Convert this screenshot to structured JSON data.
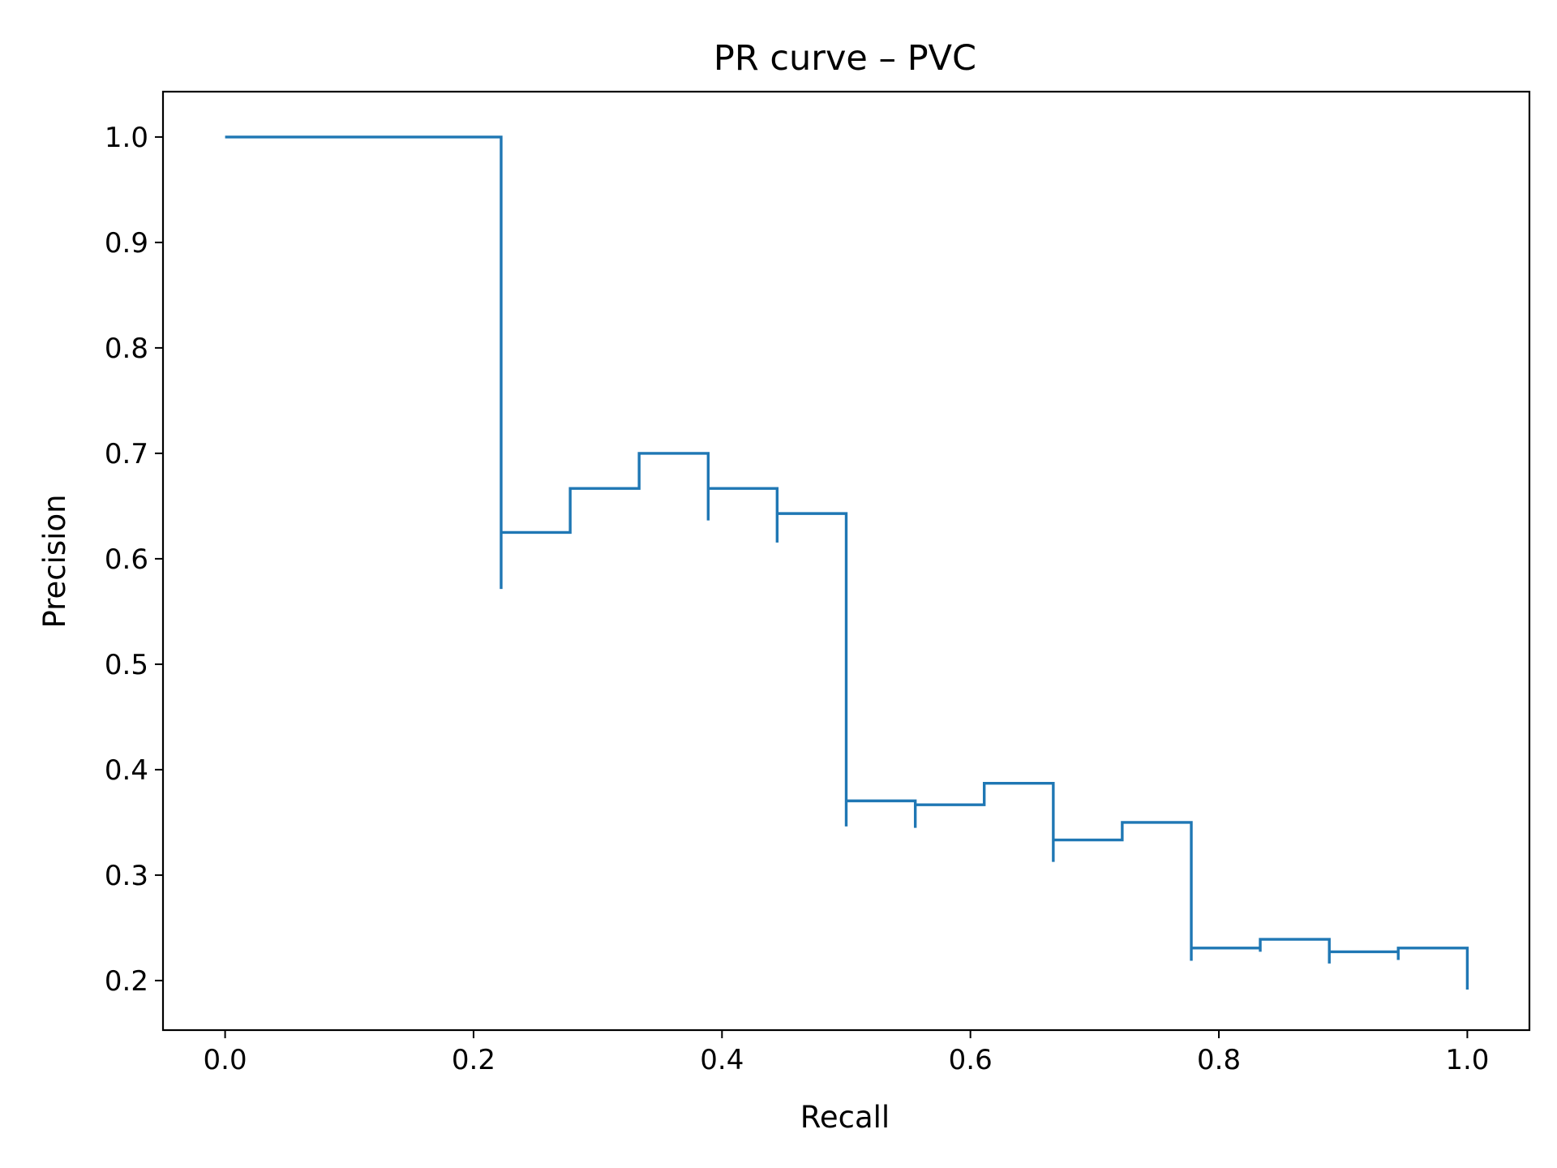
{
  "colors": {
    "series": "#1f77b4",
    "axes": "#000000",
    "background": "#ffffff"
  },
  "chart_data": {
    "type": "line",
    "drawstyle": "steps-post",
    "title": "PR curve – PVC",
    "xlabel": "Recall",
    "ylabel": "Precision",
    "xlim": [
      -0.05,
      1.05
    ],
    "ylim": [
      0.153,
      1.043
    ],
    "xticks": [
      "0.0",
      "0.2",
      "0.4",
      "0.6",
      "0.8",
      "1.0"
    ],
    "yticks": [
      "0.2",
      "0.3",
      "0.4",
      "0.5",
      "0.6",
      "0.7",
      "0.8",
      "0.9",
      "1.0"
    ],
    "grid": false,
    "legend": "none",
    "series": [
      {
        "x": [
          0.0,
          0.2222,
          0.2222,
          0.2778,
          0.3333,
          0.3889,
          0.3889,
          0.4444,
          0.4444,
          0.5,
          0.5,
          0.5556,
          0.5556,
          0.6111,
          0.6667,
          0.6667,
          0.7222,
          0.7778,
          0.7778,
          0.8333,
          0.8333,
          0.8889,
          0.8889,
          0.9444,
          0.9444,
          1.0
        ],
        "y": [
          1.0,
          0.5714,
          0.625,
          0.6667,
          0.7,
          0.6364,
          0.6667,
          0.6154,
          0.6429,
          0.3462,
          0.3704,
          0.3448,
          0.3667,
          0.3871,
          0.3125,
          0.3333,
          0.35,
          0.2188,
          0.2308,
          0.2273,
          0.2391,
          0.2162,
          0.2273,
          0.2195,
          0.2308,
          0.1915
        ]
      }
    ]
  }
}
